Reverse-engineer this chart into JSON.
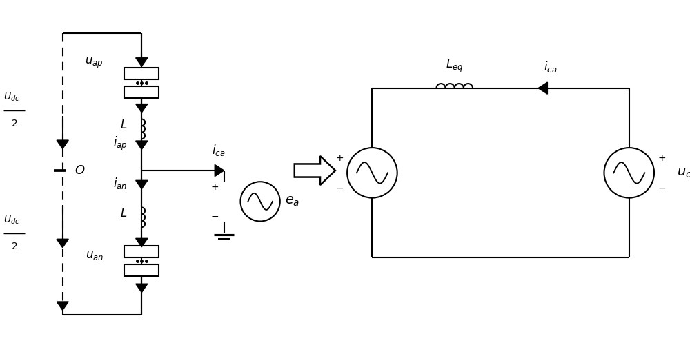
{
  "bg_color": "#ffffff",
  "line_color": "#000000",
  "fig_width": 10.0,
  "fig_height": 4.94,
  "dpi": 100
}
